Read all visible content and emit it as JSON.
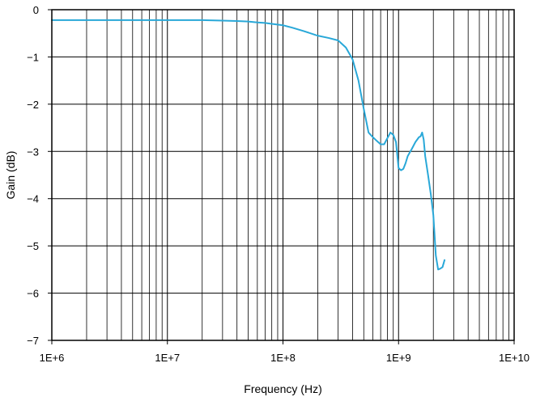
{
  "chart_data": {
    "type": "line",
    "title": "",
    "xlabel": "Frequency (Hz)",
    "ylabel": "Gain (dB)",
    "x_scale": "log",
    "xlim": [
      1000000,
      10000000000
    ],
    "ylim": [
      -7,
      0
    ],
    "x_ticks": [
      "1E+6",
      "1E+7",
      "1E+8",
      "1E+9",
      "1E+10"
    ],
    "y_ticks": [
      "0",
      "−1",
      "−2",
      "−3",
      "−4",
      "−5",
      "−6",
      "−7"
    ],
    "grid": true,
    "line_color": "#29a8d8",
    "series": [
      {
        "x": [
          1000000,
          2000000,
          5000000,
          10000000,
          20000000,
          30000000,
          40000000,
          50000000,
          60000000,
          70000000,
          80000000,
          100000000,
          120000000,
          150000000,
          200000000,
          250000000,
          300000000,
          350000000,
          400000000,
          450000000,
          500000000,
          550000000,
          600000000,
          650000000,
          700000000,
          750000000,
          800000000,
          850000000,
          900000000,
          950000000,
          1000000000,
          1050000000,
          1100000000,
          1150000000,
          1200000000,
          1300000000,
          1400000000,
          1500000000,
          1550000000,
          1600000000,
          1650000000,
          1700000000,
          1800000000,
          1900000000,
          2000000000,
          2100000000,
          2200000000,
          2300000000,
          2400000000,
          2500000000
        ],
        "y": [
          -0.22,
          -0.22,
          -0.22,
          -0.22,
          -0.22,
          -0.23,
          -0.24,
          -0.25,
          -0.27,
          -0.28,
          -0.3,
          -0.33,
          -0.38,
          -0.45,
          -0.55,
          -0.6,
          -0.65,
          -0.8,
          -1.05,
          -1.5,
          -2.1,
          -2.6,
          -2.7,
          -2.78,
          -2.85,
          -2.85,
          -2.72,
          -2.6,
          -2.65,
          -2.8,
          -3.35,
          -3.4,
          -3.37,
          -3.25,
          -3.1,
          -2.95,
          -2.8,
          -2.7,
          -2.68,
          -2.6,
          -2.75,
          -3.1,
          -3.5,
          -3.9,
          -4.35,
          -5.2,
          -5.5,
          -5.48,
          -5.45,
          -5.3
        ]
      }
    ]
  }
}
